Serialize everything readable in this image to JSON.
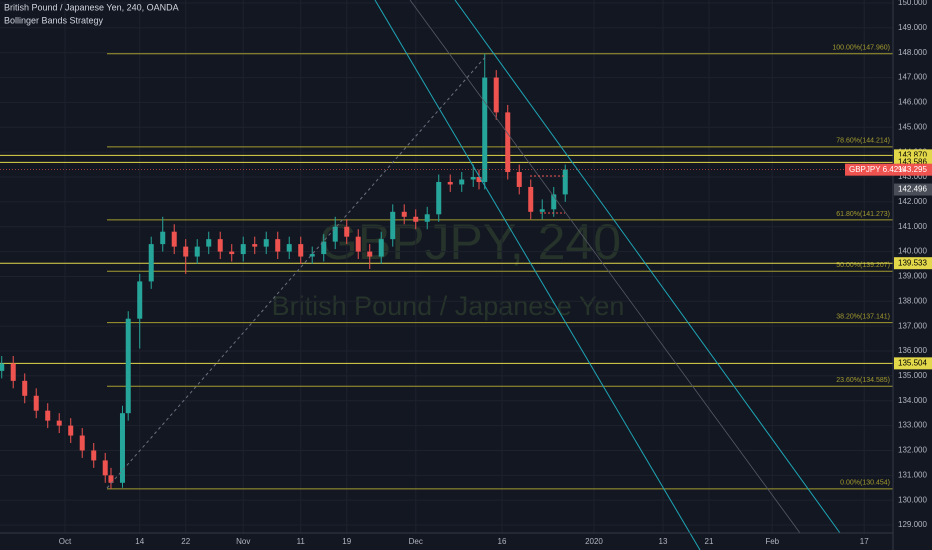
{
  "chart_data": {
    "type": "candlestick",
    "symbol_title": "British Pound / Japanese Yen, 240, OANDA",
    "indicator": "Bollinger Bands Strategy",
    "watermark": "GBPJPY, 240",
    "watermark_subtitle": "British Pound / Japanese Yen",
    "x": [
      -11,
      -9,
      -7,
      -5,
      -3,
      -1,
      1,
      3,
      5,
      7,
      8,
      10,
      11,
      13,
      15,
      17,
      19,
      21,
      23,
      25,
      27,
      29,
      31,
      33,
      35,
      37,
      39,
      41,
      43,
      45,
      47,
      49,
      51,
      53,
      55,
      57,
      59,
      61,
      63,
      65,
      67,
      69,
      71,
      72,
      73,
      75,
      77,
      79,
      81,
      83,
      85,
      87
    ],
    "open": [
      135.2,
      135.5,
      134.8,
      134.2,
      133.6,
      133.2,
      133.0,
      132.6,
      132.0,
      131.6,
      131.0,
      130.7,
      133.5,
      137.3,
      138.8,
      140.3,
      140.8,
      140.2,
      139.8,
      140.2,
      140.5,
      140.0,
      139.9,
      140.3,
      140.2,
      140.5,
      140.0,
      140.3,
      139.8,
      139.9,
      140.4,
      141.0,
      140.6,
      140.0,
      139.8,
      140.5,
      141.6,
      141.4,
      141.2,
      141.5,
      142.8,
      142.7,
      142.9,
      143.0,
      142.8,
      147.0,
      145.6,
      143.2,
      142.6,
      141.6,
      141.7,
      142.3
    ],
    "high": [
      135.8,
      135.8,
      135.1,
      134.5,
      133.9,
      133.5,
      133.3,
      132.9,
      132.3,
      131.9,
      131.3,
      133.8,
      137.6,
      139.1,
      140.6,
      141.4,
      141.1,
      140.5,
      140.5,
      140.8,
      140.8,
      140.3,
      140.6,
      140.6,
      140.8,
      140.8,
      140.6,
      140.6,
      140.2,
      140.7,
      141.4,
      141.3,
      140.9,
      140.3,
      140.8,
      141.9,
      141.9,
      141.7,
      141.8,
      143.1,
      143.1,
      143.2,
      143.5,
      143.3,
      147.96,
      147.3,
      145.9,
      143.5,
      142.9,
      142.1,
      142.6,
      143.5
    ],
    "low": [
      134.9,
      134.5,
      133.9,
      133.3,
      132.9,
      132.7,
      132.3,
      131.7,
      131.3,
      130.7,
      130.454,
      130.5,
      133.2,
      136.1,
      138.5,
      140.0,
      139.9,
      139.1,
      139.5,
      139.9,
      139.7,
      139.6,
      139.6,
      139.9,
      139.9,
      139.7,
      139.7,
      139.5,
      139.5,
      139.6,
      140.1,
      140.3,
      139.7,
      139.3,
      139.5,
      140.2,
      141.1,
      140.9,
      140.9,
      141.2,
      142.4,
      142.4,
      142.6,
      142.5,
      142.5,
      145.3,
      142.9,
      142.3,
      141.3,
      141.3,
      141.4,
      142.0
    ],
    "close": [
      135.5,
      134.8,
      134.2,
      133.6,
      133.2,
      133.0,
      132.6,
      132.0,
      131.6,
      131.0,
      130.7,
      133.5,
      137.3,
      138.8,
      140.3,
      140.8,
      140.2,
      139.8,
      140.2,
      140.5,
      140.0,
      139.9,
      140.3,
      140.2,
      140.5,
      140.0,
      140.3,
      139.8,
      139.9,
      140.4,
      141.0,
      140.6,
      140.0,
      139.8,
      140.5,
      141.6,
      141.4,
      141.2,
      141.5,
      142.8,
      142.7,
      142.9,
      143.0,
      142.8,
      147.0,
      145.6,
      143.2,
      142.6,
      141.6,
      141.7,
      142.3,
      143.3
    ],
    "up_color": "#26a69a",
    "down_color": "#ef5350",
    "xlim": [
      -11.3,
      144
    ],
    "xticks": [
      {
        "value": 0,
        "label": "Oct"
      },
      {
        "value": 13,
        "label": "14"
      },
      {
        "value": 21,
        "label": "22"
      },
      {
        "value": 31,
        "label": "Nov"
      },
      {
        "value": 41,
        "label": "11"
      },
      {
        "value": 49,
        "label": "19"
      },
      {
        "value": 61,
        "label": "Dec"
      },
      {
        "value": 76,
        "label": "16"
      },
      {
        "value": 92,
        "label": "2020"
      },
      {
        "value": 104,
        "label": "13"
      },
      {
        "value": 112,
        "label": "21"
      },
      {
        "value": 123,
        "label": "Feb"
      },
      {
        "value": 139,
        "label": "17"
      }
    ],
    "ylim": [
      128.68,
      150.12
    ],
    "yticks": [
      {
        "value": 129,
        "label": "129.000"
      },
      {
        "value": 130,
        "label": "130.000"
      },
      {
        "value": 131,
        "label": "131.000"
      },
      {
        "value": 132,
        "label": "132.000"
      },
      {
        "value": 133,
        "label": "133.000"
      },
      {
        "value": 134,
        "label": "134.000"
      },
      {
        "value": 135,
        "label": "135.000"
      },
      {
        "value": 136,
        "label": "136.000"
      },
      {
        "value": 137,
        "label": "137.000"
      },
      {
        "value": 138,
        "label": "138.000"
      },
      {
        "value": 139,
        "label": "139.000"
      },
      {
        "value": 140,
        "label": "140.000"
      },
      {
        "value": 141,
        "label": "141.000"
      },
      {
        "value": 142,
        "label": "142.000"
      },
      {
        "value": 143,
        "label": "143.000"
      },
      {
        "value": 144,
        "label": "144.000"
      },
      {
        "value": 145,
        "label": "145.000"
      },
      {
        "value": 146,
        "label": "146.000"
      },
      {
        "value": 147,
        "label": "147.000"
      },
      {
        "value": 148,
        "label": "148.000"
      },
      {
        "value": 149,
        "label": "149.000"
      },
      {
        "value": 150,
        "label": "150.000"
      }
    ],
    "grid": true,
    "fib_color": "#a39b2f",
    "fib_levels": [
      {
        "value": 147.96,
        "label": "100.00%(147.960)"
      },
      {
        "value": 144.214,
        "label": "78.60%(144.214)"
      },
      {
        "value": 141.273,
        "label": "61.80%(141.273)"
      },
      {
        "value": 139.207,
        "label": "50.00%(139.207)"
      },
      {
        "value": 137.141,
        "label": "38.20%(137.141)"
      },
      {
        "value": 134.585,
        "label": "23.60%(134.585)"
      },
      {
        "value": 130.454,
        "label": "0.00%(130.454)"
      }
    ],
    "line_color": "#e3d84a",
    "price_lines": [
      {
        "value": 143.87,
        "label": "143.870"
      },
      {
        "value": 143.586,
        "label": "143.586"
      },
      {
        "value": 139.533,
        "label": "139.533"
      },
      {
        "value": 135.504,
        "label": "135.504"
      }
    ],
    "last_price": {
      "name": "GBPJPY  6.42%",
      "value": 143.295,
      "label": "143.295"
    },
    "marker_price": {
      "value": 142.496,
      "label": "142.496"
    }
  }
}
